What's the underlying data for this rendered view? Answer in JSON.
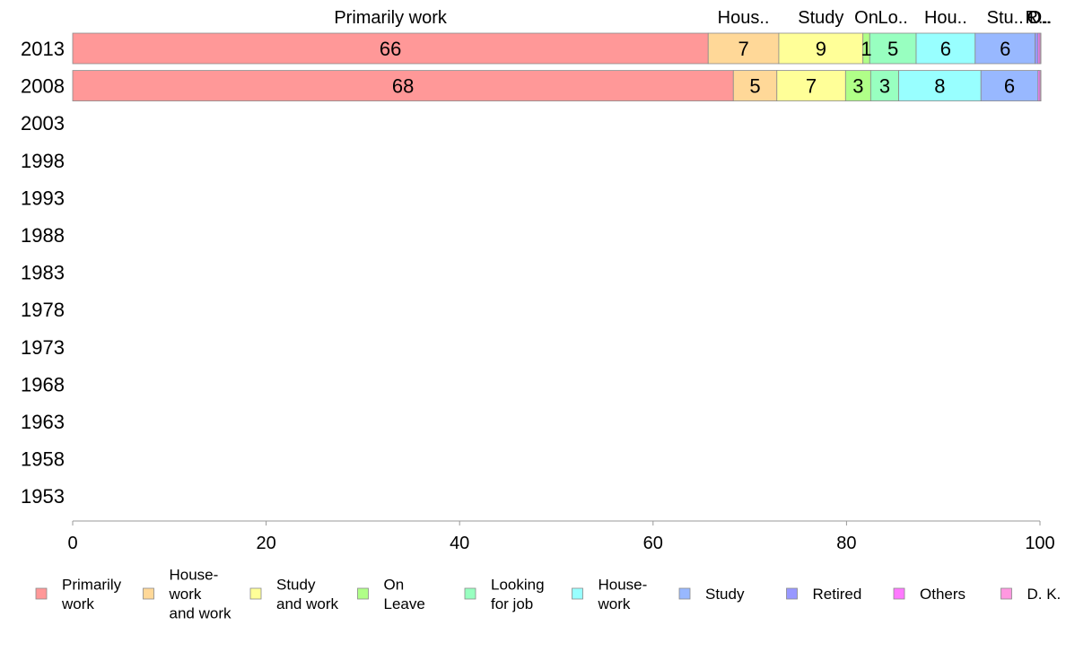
{
  "chart_data": {
    "type": "bar",
    "orientation": "horizontal",
    "stacked": true,
    "categories": [
      "2013",
      "2008",
      "2003",
      "1998",
      "1993",
      "1988",
      "1983",
      "1978",
      "1973",
      "1968",
      "1963",
      "1958",
      "1953"
    ],
    "xlim": [
      0,
      100
    ],
    "x_ticks": [
      "0",
      "20",
      "40",
      "60",
      "80",
      "100"
    ],
    "grid": false,
    "legend_position": "bottom",
    "series": [
      {
        "name": "Primarily work",
        "legend_lines": [
          "Primarily",
          "work"
        ],
        "top_label": "Primarily work",
        "color": "#FF9898",
        "values": [
          65.7,
          68.3,
          null,
          null,
          null,
          null,
          null,
          null,
          null,
          null,
          null,
          null,
          null
        ],
        "labels": [
          "66",
          "68"
        ]
      },
      {
        "name": "House-work and work",
        "legend_lines": [
          "House-",
          "work",
          "and work"
        ],
        "top_label": "Hous..",
        "color": "#FFD898",
        "values": [
          7.3,
          4.5,
          null,
          null,
          null,
          null,
          null,
          null,
          null,
          null,
          null,
          null,
          null
        ],
        "labels": [
          "7",
          "5"
        ]
      },
      {
        "name": "Study and work",
        "legend_lines": [
          "Study",
          "and work"
        ],
        "top_label": "Study",
        "color": "#FFFF98",
        "values": [
          8.7,
          7.1,
          null,
          null,
          null,
          null,
          null,
          null,
          null,
          null,
          null,
          null,
          null
        ],
        "labels": [
          "9",
          "7"
        ]
      },
      {
        "name": "On Leave",
        "legend_lines": [
          "On",
          "Leave"
        ],
        "top_label": "On",
        "color": "#B0FF88",
        "values": [
          0.7,
          2.6,
          null,
          null,
          null,
          null,
          null,
          null,
          null,
          null,
          null,
          null,
          null
        ],
        "labels": [
          "1",
          "3"
        ]
      },
      {
        "name": "Looking for job",
        "legend_lines": [
          "Looking",
          "for job"
        ],
        "top_label": "Lo..",
        "color": "#98FFC0",
        "values": [
          4.8,
          2.9,
          null,
          null,
          null,
          null,
          null,
          null,
          null,
          null,
          null,
          null,
          null
        ],
        "labels": [
          "5",
          "3"
        ]
      },
      {
        "name": "House-work",
        "legend_lines": [
          "House-",
          "work"
        ],
        "top_label": "Hou..",
        "color": "#98FFFF",
        "values": [
          6.1,
          8.5,
          null,
          null,
          null,
          null,
          null,
          null,
          null,
          null,
          null,
          null,
          null
        ],
        "labels": [
          "6",
          "8"
        ]
      },
      {
        "name": "Study",
        "legend_lines": [
          "Study"
        ],
        "top_label": "Stu..",
        "color": "#98B8FF",
        "values": [
          6.2,
          5.9,
          null,
          null,
          null,
          null,
          null,
          null,
          null,
          null,
          null,
          null,
          null
        ],
        "labels": [
          "6",
          "6"
        ]
      },
      {
        "name": "Retired",
        "legend_lines": [
          "Retired"
        ],
        "top_label": "R..",
        "color": "#9898FF",
        "values": [
          0.3,
          0.0,
          null,
          null,
          null,
          null,
          null,
          null,
          null,
          null,
          null,
          null,
          null
        ],
        "labels": [
          "",
          ""
        ]
      },
      {
        "name": "Others",
        "legend_lines": [
          "Others"
        ],
        "top_label": "O..",
        "color": "#FF78FF",
        "values": [
          0.2,
          0.2,
          null,
          null,
          null,
          null,
          null,
          null,
          null,
          null,
          null,
          null,
          null
        ],
        "labels": [
          "",
          ""
        ]
      },
      {
        "name": "D. K.",
        "legend_lines": [
          "D. K."
        ],
        "top_label": "D..",
        "color": "#FF98E0",
        "values": [
          0.1,
          0.1,
          null,
          null,
          null,
          null,
          null,
          null,
          null,
          null,
          null,
          null,
          null
        ],
        "labels": [
          "",
          ""
        ]
      }
    ]
  }
}
